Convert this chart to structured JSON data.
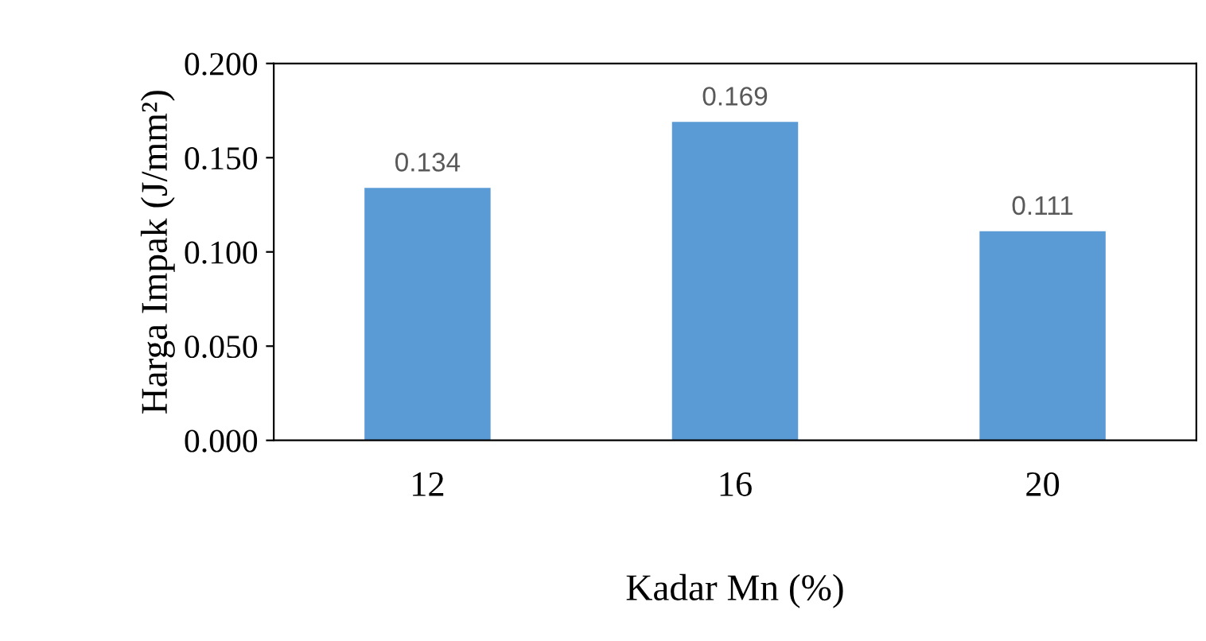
{
  "chart_data": {
    "type": "bar",
    "xlabel": "Kadar Mn (%)",
    "ylabel": "Harga Impak (J/mm²)",
    "categories": [
      "12",
      "16",
      "20"
    ],
    "values": [
      0.134,
      0.169,
      0.111
    ],
    "color": "#5b9bd5",
    "ylim": [
      0,
      0.2
    ],
    "yticks": [
      {
        "value": 0,
        "label": "0.000"
      },
      {
        "value": 0.05,
        "label": "0.050"
      },
      {
        "value": 0.1,
        "label": "0.100"
      },
      {
        "value": 0.15,
        "label": "0.150"
      },
      {
        "value": 0.2,
        "label": "0.200"
      }
    ],
    "data_labels": true,
    "grid": false,
    "legend": false
  }
}
